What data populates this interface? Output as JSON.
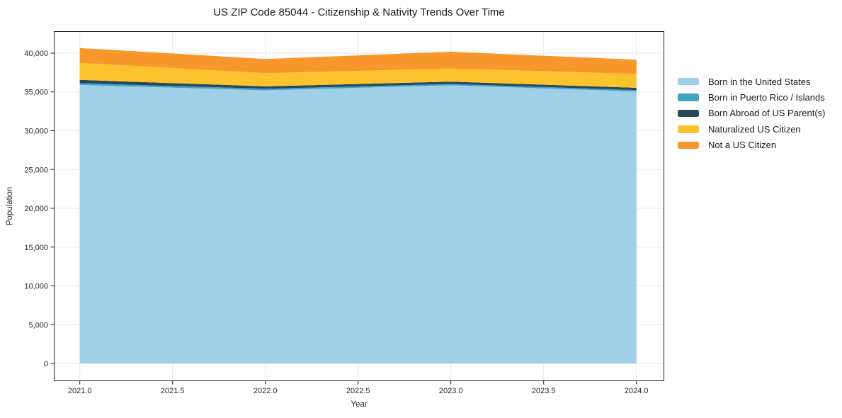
{
  "style": {
    "figure_background": "#ffffff",
    "plot_background": "#ffffff",
    "grid_color": "#e7e7e7",
    "spine_color": "#1f1f1f",
    "tick_text_color": "#262626",
    "title_color": "#1a1a1a"
  },
  "chart_data": {
    "type": "area",
    "stacked": true,
    "title": "US ZIP Code 85044 - Citizenship & Nativity Trends Over Time",
    "xlabel": "Year",
    "ylabel": "Population",
    "x": [
      2021,
      2022,
      2023,
      2024
    ],
    "series": [
      {
        "name": "Born in the United States",
        "color": "#9fd0e7",
        "values": [
          35900,
          35200,
          35850,
          35050
        ]
      },
      {
        "name": "Born in Puerto Rico / Islands",
        "color": "#42a4c5",
        "values": [
          230,
          210,
          180,
          180
        ]
      },
      {
        "name": "Born Abroad of US Parent(s)",
        "color": "#27485c",
        "values": [
          430,
          310,
          300,
          300
        ]
      },
      {
        "name": "Naturalized US Citizen",
        "color": "#fcc32e",
        "values": [
          2200,
          1700,
          1700,
          1800
        ]
      },
      {
        "name": "Not a US Citizen",
        "color": "#f8972b",
        "values": [
          1900,
          1830,
          2150,
          1820
        ]
      }
    ],
    "xlim": [
      2020.86,
      2024.15
    ],
    "ylim": [
      -2283,
      42831
    ],
    "xticks": {
      "values": [
        2021.0,
        2021.5,
        2022.0,
        2022.5,
        2023.0,
        2023.5,
        2024.0
      ],
      "labels": [
        "2021.0",
        "2021.5",
        "2022.0",
        "2022.5",
        "2023.0",
        "2023.5",
        "2024.0"
      ]
    },
    "yticks": {
      "values": [
        0,
        5000,
        10000,
        15000,
        20000,
        25000,
        30000,
        35000,
        40000
      ],
      "labels": [
        "0",
        "5,000",
        "10,000",
        "15,000",
        "20,000",
        "25,000",
        "30,000",
        "35,000",
        "40,000"
      ]
    },
    "grid": true,
    "legend_position": "right"
  }
}
